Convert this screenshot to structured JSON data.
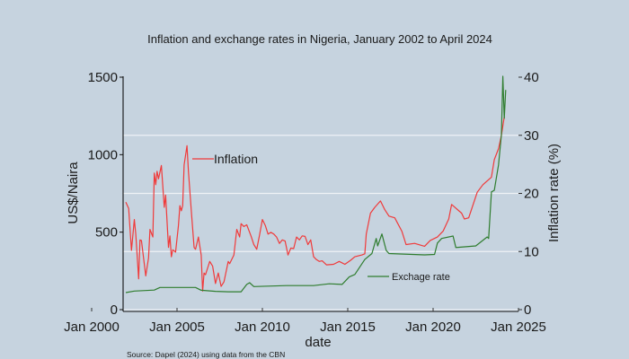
{
  "chart_data": {
    "type": "line",
    "title": "Inflation and exchange rates in Nigeria, January 2002 to April 2024",
    "xlabel": "date",
    "ylabel_left": "US$/Naira",
    "ylabel_right": "Inflation rate (%)",
    "source": "Source: Dapel (2024) using data from the CBN",
    "xlim": [
      "2000-01",
      "2025-01"
    ],
    "x_ticks": [
      {
        "date": "2000-01",
        "label": "Jan 2000"
      },
      {
        "date": "2005-01",
        "label": "Jan 2005"
      },
      {
        "date": "2010-01",
        "label": "Jan 2010"
      },
      {
        "date": "2015-01",
        "label": "Jan 2015"
      },
      {
        "date": "2020-01",
        "label": "Jan 2020"
      },
      {
        "date": "2025-01",
        "label": "Jan 2025"
      }
    ],
    "ylim_left": [
      0,
      1500
    ],
    "y_ticks_left": [
      "0",
      "500",
      "1000",
      "1500"
    ],
    "ylim_right": [
      0,
      40
    ],
    "y_ticks_right": [
      "0",
      "10",
      "20",
      "30",
      "40"
    ],
    "grid": "horizontal lines at right-axis ticks",
    "colors": {
      "background": "#c6d3df",
      "inflation": "#f03a3a",
      "exchange": "#2f7d2f",
      "grid": "#eef2f6"
    },
    "series": [
      {
        "name": "Inflation",
        "axis": "right",
        "legend_label": "Inflation",
        "points": [
          [
            "2002-01",
            18.5
          ],
          [
            "2002-03",
            17.4
          ],
          [
            "2002-05",
            10.2
          ],
          [
            "2002-07",
            15.5
          ],
          [
            "2002-08",
            13.0
          ],
          [
            "2002-10",
            5.3
          ],
          [
            "2002-11",
            12.0
          ],
          [
            "2002-12",
            11.9
          ],
          [
            "2003-03",
            5.8
          ],
          [
            "2003-05",
            8.9
          ],
          [
            "2003-06",
            13.8
          ],
          [
            "2003-08",
            12.5
          ],
          [
            "2003-09",
            23.5
          ],
          [
            "2003-10",
            21.5
          ],
          [
            "2003-11",
            23.8
          ],
          [
            "2003-12",
            22.5
          ],
          [
            "2004-02",
            24.8
          ],
          [
            "2004-04",
            17.6
          ],
          [
            "2004-05",
            19.7
          ],
          [
            "2004-07",
            10.7
          ],
          [
            "2004-08",
            12.7
          ],
          [
            "2004-09",
            9.1
          ],
          [
            "2004-10",
            10.3
          ],
          [
            "2004-12",
            9.9
          ],
          [
            "2005-02",
            14.5
          ],
          [
            "2005-03",
            17.9
          ],
          [
            "2005-04",
            17.0
          ],
          [
            "2005-05",
            17.9
          ],
          [
            "2005-06",
            24.9
          ],
          [
            "2005-08",
            28.2
          ],
          [
            "2005-09",
            23.8
          ],
          [
            "2005-11",
            17.2
          ],
          [
            "2006-01",
            10.7
          ],
          [
            "2006-02",
            10.4
          ],
          [
            "2006-04",
            12.5
          ],
          [
            "2006-06",
            9.4
          ],
          [
            "2006-07",
            3.2
          ],
          [
            "2006-08",
            6.3
          ],
          [
            "2006-09",
            6.0
          ],
          [
            "2006-12",
            8.3
          ],
          [
            "2007-02",
            7.5
          ],
          [
            "2007-04",
            4.5
          ],
          [
            "2007-06",
            6.3
          ],
          [
            "2007-08",
            4.0
          ],
          [
            "2007-10",
            4.8
          ],
          [
            "2008-01",
            8.3
          ],
          [
            "2008-02",
            7.9
          ],
          [
            "2008-05",
            9.4
          ],
          [
            "2008-07",
            13.8
          ],
          [
            "2008-09",
            12.5
          ],
          [
            "2008-10",
            14.8
          ],
          [
            "2008-12",
            14.3
          ],
          [
            "2009-02",
            14.6
          ],
          [
            "2009-05",
            12.7
          ],
          [
            "2009-07",
            11.2
          ],
          [
            "2009-09",
            10.4
          ],
          [
            "2009-11",
            12.8
          ],
          [
            "2010-01",
            15.5
          ],
          [
            "2010-03",
            14.5
          ],
          [
            "2010-05",
            13.0
          ],
          [
            "2010-07",
            13.3
          ],
          [
            "2010-09",
            13.0
          ],
          [
            "2010-11",
            12.5
          ],
          [
            "2011-01",
            11.4
          ],
          [
            "2011-03",
            12.0
          ],
          [
            "2011-05",
            11.8
          ],
          [
            "2011-07",
            9.4
          ],
          [
            "2011-09",
            10.6
          ],
          [
            "2011-11",
            10.5
          ],
          [
            "2012-01",
            12.5
          ],
          [
            "2012-03",
            12.0
          ],
          [
            "2012-05",
            12.7
          ],
          [
            "2012-07",
            12.6
          ],
          [
            "2012-09",
            11.2
          ],
          [
            "2012-11",
            12.0
          ],
          [
            "2013-01",
            9.1
          ],
          [
            "2013-03",
            8.6
          ],
          [
            "2013-05",
            8.3
          ],
          [
            "2013-07",
            8.4
          ],
          [
            "2013-10",
            7.7
          ],
          [
            "2014-03",
            7.8
          ],
          [
            "2014-07",
            8.3
          ],
          [
            "2014-11",
            7.8
          ],
          [
            "2015-03",
            8.5
          ],
          [
            "2015-06",
            9.1
          ],
          [
            "2015-11",
            9.4
          ],
          [
            "2016-01",
            9.6
          ],
          [
            "2016-02",
            13.0
          ],
          [
            "2016-05",
            16.6
          ],
          [
            "2016-08",
            17.6
          ],
          [
            "2016-12",
            18.7
          ],
          [
            "2017-03",
            17.2
          ],
          [
            "2017-06",
            16.1
          ],
          [
            "2017-10",
            15.8
          ],
          [
            "2018-03",
            13.5
          ],
          [
            "2018-06",
            11.2
          ],
          [
            "2018-12",
            11.4
          ],
          [
            "2019-07",
            10.9
          ],
          [
            "2019-11",
            11.9
          ],
          [
            "2020-04",
            12.5
          ],
          [
            "2020-08",
            13.5
          ],
          [
            "2020-12",
            15.6
          ],
          [
            "2021-02",
            18.1
          ],
          [
            "2021-09",
            16.6
          ],
          [
            "2021-11",
            15.6
          ],
          [
            "2022-02",
            15.8
          ],
          [
            "2022-08",
            20.2
          ],
          [
            "2022-12",
            21.5
          ],
          [
            "2023-06",
            22.8
          ],
          [
            "2023-08",
            25.8
          ],
          [
            "2023-11",
            27.7
          ],
          [
            "2024-01",
            30.0
          ],
          [
            "2024-03",
            33.2
          ]
        ]
      },
      {
        "name": "Exchage rate",
        "axis": "left",
        "legend_label": "Exchage rate",
        "points": [
          [
            "2002-01",
            110
          ],
          [
            "2002-07",
            120
          ],
          [
            "2003-09",
            126
          ],
          [
            "2004-01",
            143
          ],
          [
            "2006-02",
            143
          ],
          [
            "2006-06",
            125
          ],
          [
            "2007-04",
            118
          ],
          [
            "2008-01",
            115
          ],
          [
            "2008-10",
            115
          ],
          [
            "2009-02",
            163
          ],
          [
            "2009-04",
            174
          ],
          [
            "2009-07",
            149
          ],
          [
            "2011-06",
            155
          ],
          [
            "2013-01",
            155
          ],
          [
            "2013-12",
            167
          ],
          [
            "2014-09",
            163
          ],
          [
            "2015-02",
            211
          ],
          [
            "2015-06",
            227
          ],
          [
            "2016-01",
            324
          ],
          [
            "2016-06",
            362
          ],
          [
            "2016-09",
            459
          ],
          [
            "2016-10",
            411
          ],
          [
            "2017-01",
            488
          ],
          [
            "2017-04",
            382
          ],
          [
            "2017-06",
            362
          ],
          [
            "2019-07",
            353
          ],
          [
            "2020-02",
            356
          ],
          [
            "2020-04",
            430
          ],
          [
            "2020-07",
            459
          ],
          [
            "2021-03",
            475
          ],
          [
            "2021-05",
            401
          ],
          [
            "2022-07",
            411
          ],
          [
            "2023-03",
            469
          ],
          [
            "2023-04",
            459
          ],
          [
            "2023-06",
            760
          ],
          [
            "2023-08",
            770
          ],
          [
            "2023-11",
            934
          ],
          [
            "2024-01",
            1128
          ],
          [
            "2024-02",
            1506
          ],
          [
            "2024-03",
            1234
          ],
          [
            "2024-04",
            1418
          ]
        ]
      }
    ]
  }
}
